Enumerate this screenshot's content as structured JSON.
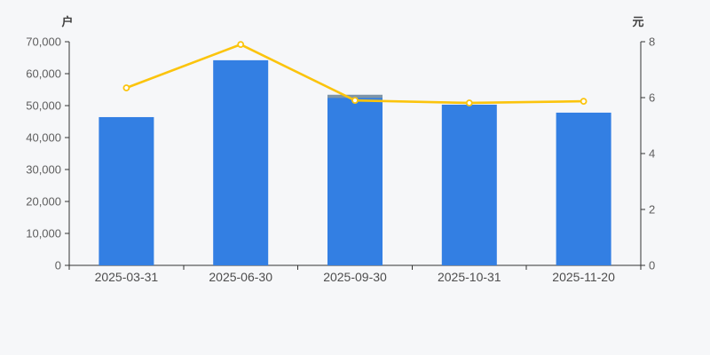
{
  "page": {
    "background": "#f6f7f9"
  },
  "chart_data": {
    "type": "bar",
    "subtype": "dual-axis-bar-line",
    "title": "",
    "categories": [
      "2025-03-31",
      "2025-06-30",
      "2025-09-30",
      "2025-10-31",
      "2025-11-20"
    ],
    "series": [
      {
        "name": "households-overlay-cap-bar",
        "type": "bar",
        "axis": "left",
        "color": "#7e95a8",
        "values": [
          null,
          null,
          53400,
          null,
          null
        ]
      },
      {
        "name": "households-bar",
        "type": "bar",
        "axis": "left",
        "color": "#337fe3",
        "values": [
          46400,
          64200,
          52400,
          50300,
          47800
        ]
      },
      {
        "name": "price-line",
        "type": "line",
        "axis": "right",
        "color": "#fbc40d",
        "marker": "hollow-circle",
        "values": [
          6.35,
          7.9,
          5.9,
          5.81,
          5.87
        ]
      }
    ],
    "left_axis": {
      "name": "户",
      "min": 0,
      "max": 70000,
      "tick_interval": 10000,
      "ticks": [
        {
          "v": 0,
          "label": "0"
        },
        {
          "v": 10000,
          "label": "10,000"
        },
        {
          "v": 20000,
          "label": "20,000"
        },
        {
          "v": 30000,
          "label": "30,000"
        },
        {
          "v": 40000,
          "label": "40,000"
        },
        {
          "v": 50000,
          "label": "50,000"
        },
        {
          "v": 60000,
          "label": "60,000"
        },
        {
          "v": 70000,
          "label": "70,000"
        }
      ]
    },
    "right_axis": {
      "name": "元",
      "min": 0,
      "max": 8,
      "tick_interval": 2,
      "ticks": [
        {
          "v": 0,
          "label": "0"
        },
        {
          "v": 2,
          "label": "2"
        },
        {
          "v": 4,
          "label": "4"
        },
        {
          "v": 6,
          "label": "6"
        },
        {
          "v": 8,
          "label": "8"
        }
      ]
    },
    "grid": false,
    "legend": "none"
  },
  "colors": {
    "axis_line": "#333333",
    "tick_text": "#5e5e5e",
    "category_text": "#4d4d4d",
    "axis_name_text": "#404040",
    "marker_fill": "#ffffff"
  }
}
